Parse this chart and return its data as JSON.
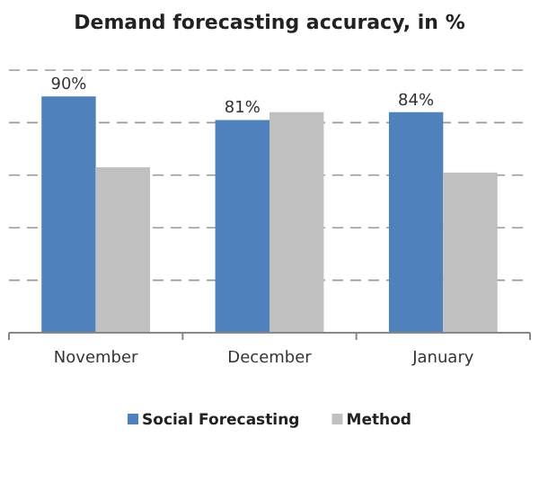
{
  "chart_data": {
    "type": "bar",
    "title": "Demand forecasting accuracy, in %",
    "categories": [
      "November",
      "December",
      "January"
    ],
    "series": [
      {
        "name": "Social Forecasting",
        "color": "#4f81bd",
        "values": [
          90,
          81,
          84
        ],
        "value_labels": [
          "90%",
          "81%",
          "84%"
        ]
      },
      {
        "name": "Method",
        "color": "#c0c0c0",
        "values": [
          63,
          84,
          61
        ]
      }
    ],
    "ylim": [
      0,
      100
    ],
    "yticks": [
      {
        "value": 0,
        "label": null
      },
      {
        "value": 20,
        "label": null
      },
      {
        "value": 40,
        "label": null
      },
      {
        "value": 60,
        "label": null
      },
      {
        "value": 80,
        "label": null
      },
      {
        "value": 100,
        "label": null
      }
    ],
    "grid": "y",
    "legend": "bottom",
    "tick_labels": "x"
  }
}
